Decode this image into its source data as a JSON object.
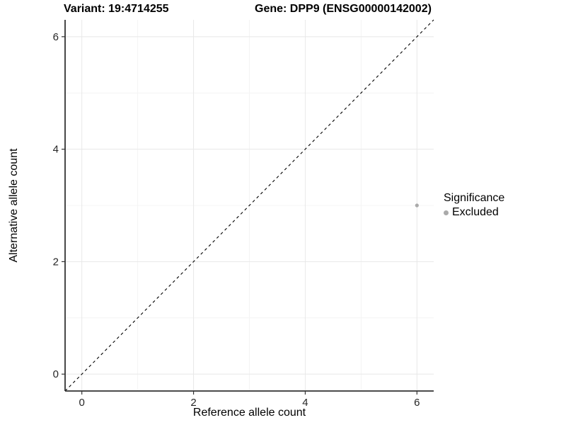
{
  "titles": {
    "variant": "Variant: 19:4714255",
    "gene": "Gene: DPP9 (ENSG00000142002)"
  },
  "axes": {
    "x_label": "Reference allele count",
    "y_label": "Alternative allele count"
  },
  "legend": {
    "title": "Significance",
    "items": [
      {
        "label": "Excluded",
        "color": "#aaaaaa"
      }
    ]
  },
  "colors": {
    "background": "#ffffff",
    "grid_major": "#e8e8e8",
    "grid_minor": "#f4f4f4",
    "axis_line": "#333333",
    "tick_label": "#262626",
    "identity_line": "#000000",
    "point": "#aaaaaa"
  },
  "chart_data": {
    "type": "scatter",
    "title": "Variant: 19:4714255   Gene: DPP9 (ENSG00000142002)",
    "xlabel": "Reference allele count",
    "ylabel": "Alternative allele count",
    "xlim": [
      -0.3,
      6.3
    ],
    "ylim": [
      -0.3,
      6.3
    ],
    "x_major_ticks": [
      0,
      2,
      4,
      6
    ],
    "y_major_ticks": [
      0,
      2,
      4,
      6
    ],
    "x_minor_ticks": [
      1,
      3,
      5
    ],
    "y_minor_ticks": [
      1,
      3,
      5
    ],
    "grid": true,
    "legend_position": "right",
    "reference_line": {
      "kind": "identity-diagonal",
      "style": "dashed",
      "color": "#000000"
    },
    "series": [
      {
        "name": "Excluded",
        "color": "#aaaaaa",
        "points": [
          {
            "x": 6,
            "y": 3
          }
        ]
      }
    ]
  }
}
